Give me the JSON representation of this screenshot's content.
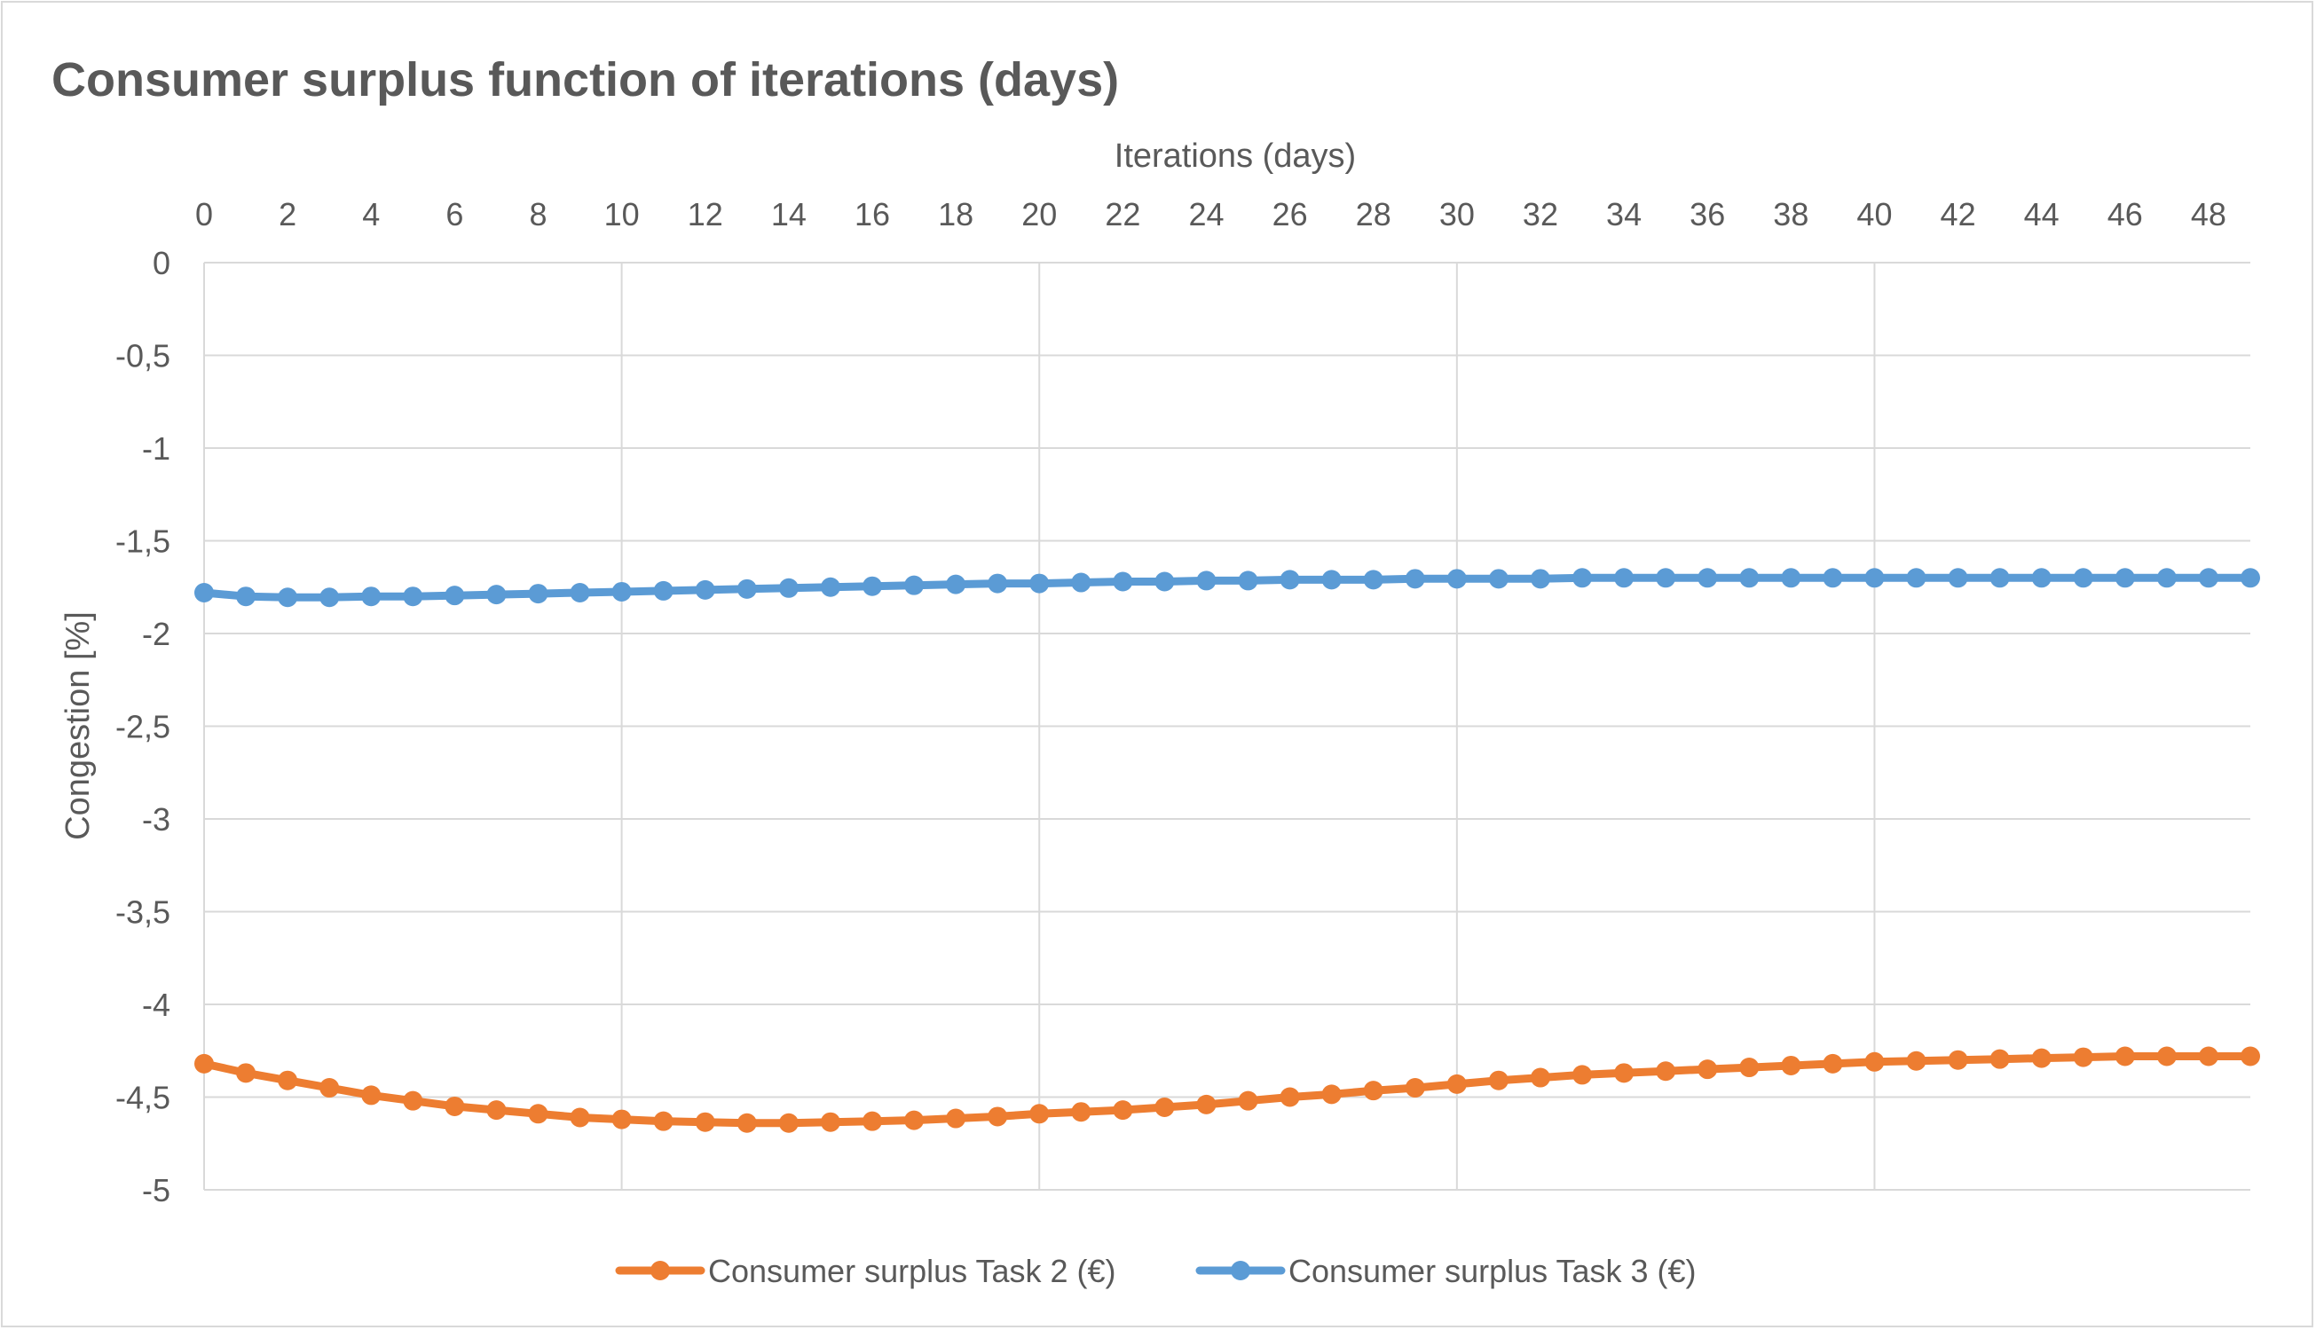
{
  "chart_data": {
    "type": "line",
    "title": "Consumer surplus function of iterations (days)",
    "xlabel": "Iterations (days)",
    "ylabel": "Congestion [%]",
    "x_axis_position": "top",
    "x_ticks": [
      "0",
      "2",
      "4",
      "6",
      "8",
      "10",
      "12",
      "14",
      "16",
      "18",
      "20",
      "22",
      "24",
      "26",
      "28",
      "30",
      "32",
      "34",
      "36",
      "38",
      "40",
      "42",
      "44",
      "46",
      "48"
    ],
    "y_ticks": [
      "0",
      "-0,5",
      "-1",
      "-1,5",
      "-2",
      "-2,5",
      "-3",
      "-3,5",
      "-4",
      "-4,5",
      "-5"
    ],
    "xlim": [
      0,
      49
    ],
    "ylim": [
      -5,
      0
    ],
    "grid": true,
    "legend_position": "bottom",
    "x": [
      0,
      1,
      2,
      3,
      4,
      5,
      6,
      7,
      8,
      9,
      10,
      11,
      12,
      13,
      14,
      15,
      16,
      17,
      18,
      19,
      20,
      21,
      22,
      23,
      24,
      25,
      26,
      27,
      28,
      29,
      30,
      31,
      32,
      33,
      34,
      35,
      36,
      37,
      38,
      39,
      40,
      41,
      42,
      43,
      44,
      45,
      46,
      47,
      48,
      49
    ],
    "series": [
      {
        "name": "Consumer surplus Task 2 (€)",
        "color": "#ed7d31",
        "values": [
          -4.32,
          -4.37,
          -4.41,
          -4.45,
          -4.49,
          -4.52,
          -4.55,
          -4.57,
          -4.59,
          -4.61,
          -4.62,
          -4.63,
          -4.635,
          -4.64,
          -4.64,
          -4.635,
          -4.63,
          -4.625,
          -4.615,
          -4.605,
          -4.59,
          -4.58,
          -4.57,
          -4.555,
          -4.54,
          -4.52,
          -4.5,
          -4.485,
          -4.465,
          -4.45,
          -4.43,
          -4.41,
          -4.395,
          -4.38,
          -4.37,
          -4.36,
          -4.35,
          -4.34,
          -4.33,
          -4.32,
          -4.31,
          -4.305,
          -4.3,
          -4.295,
          -4.29,
          -4.285,
          -4.28,
          -4.28,
          -4.28,
          -4.28
        ]
      },
      {
        "name": "Consumer surplus Task 3 (€)",
        "color": "#5b9bd5",
        "values": [
          -1.78,
          -1.8,
          -1.805,
          -1.805,
          -1.8,
          -1.8,
          -1.795,
          -1.79,
          -1.785,
          -1.78,
          -1.775,
          -1.77,
          -1.765,
          -1.76,
          -1.755,
          -1.75,
          -1.745,
          -1.74,
          -1.735,
          -1.73,
          -1.73,
          -1.725,
          -1.72,
          -1.72,
          -1.715,
          -1.715,
          -1.71,
          -1.71,
          -1.71,
          -1.705,
          -1.705,
          -1.705,
          -1.705,
          -1.7,
          -1.7,
          -1.7,
          -1.7,
          -1.7,
          -1.7,
          -1.7,
          -1.7,
          -1.7,
          -1.7,
          -1.7,
          -1.7,
          -1.7,
          -1.7,
          -1.7,
          -1.7,
          -1.7
        ]
      }
    ]
  }
}
